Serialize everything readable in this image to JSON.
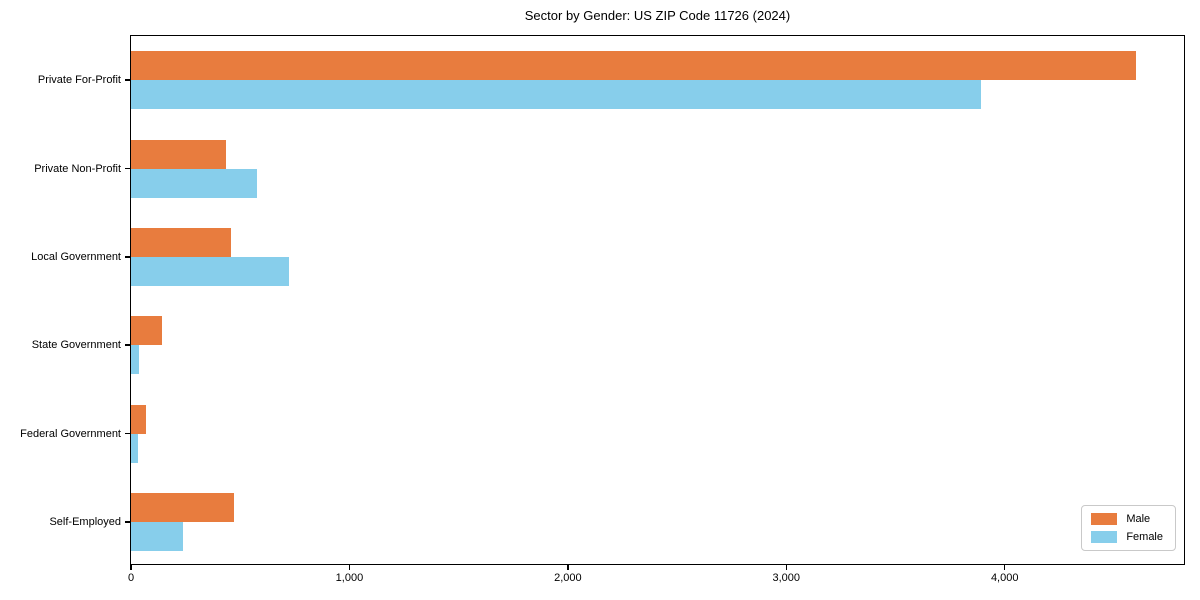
{
  "chart_data": {
    "type": "bar",
    "orientation": "horizontal",
    "title": "Sector by Gender: US ZIP Code 11726 (2024)",
    "categories": [
      "Private For-Profit",
      "Private Non-Profit",
      "Local Government",
      "State Government",
      "Federal Government",
      "Self-Employed"
    ],
    "series": [
      {
        "name": "Male",
        "color": "#e87c3e",
        "values": [
          4600,
          435,
          460,
          140,
          70,
          470
        ]
      },
      {
        "name": "Female",
        "color": "#87ceeb",
        "values": [
          3890,
          575,
          725,
          35,
          30,
          240
        ]
      }
    ],
    "xlabel": "",
    "ylabel": "",
    "xlim": [
      0,
      4830
    ],
    "x_ticks": [
      0,
      1000,
      2000,
      3000,
      4000
    ],
    "x_tick_labels": [
      "0",
      "1,000",
      "2,000",
      "3,000",
      "4,000"
    ],
    "grid": false,
    "legend": {
      "position": "lower right",
      "entries": [
        "Male",
        "Female"
      ]
    },
    "colors": {
      "male": "#e87c3e",
      "female": "#87ceeb",
      "axis": "#000000",
      "legend_border": "#c9c9c9"
    }
  }
}
